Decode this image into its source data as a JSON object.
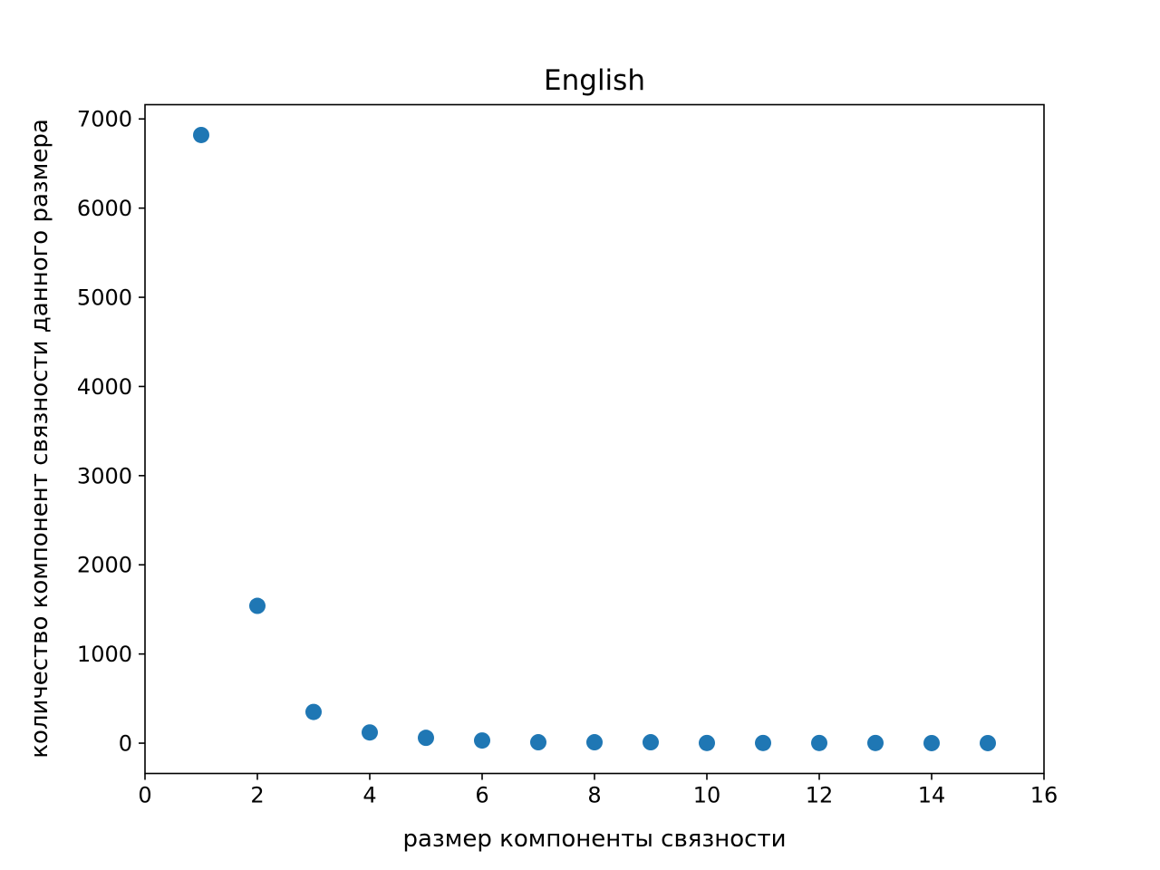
{
  "chart_data": {
    "type": "scatter",
    "title": "English",
    "xlabel": "размер компоненты связности",
    "ylabel": "количество компонент связности данного размера",
    "xlim": [
      0,
      16
    ],
    "ylim": [
      -340,
      7160
    ],
    "x_ticks": [
      0,
      2,
      4,
      6,
      8,
      10,
      12,
      14,
      16
    ],
    "y_ticks": [
      0,
      1000,
      2000,
      3000,
      4000,
      5000,
      6000,
      7000
    ],
    "grid": false,
    "marker_color": "#1f77b4",
    "points": [
      {
        "x": 1,
        "y": 6820
      },
      {
        "x": 2,
        "y": 1540
      },
      {
        "x": 3,
        "y": 350
      },
      {
        "x": 4,
        "y": 120
      },
      {
        "x": 5,
        "y": 60
      },
      {
        "x": 6,
        "y": 30
      },
      {
        "x": 7,
        "y": 10
      },
      {
        "x": 8,
        "y": 10
      },
      {
        "x": 9,
        "y": 10
      },
      {
        "x": 10,
        "y": 2
      },
      {
        "x": 11,
        "y": 2
      },
      {
        "x": 12,
        "y": 2
      },
      {
        "x": 13,
        "y": 2
      },
      {
        "x": 14,
        "y": 1
      },
      {
        "x": 15,
        "y": 1
      }
    ]
  }
}
